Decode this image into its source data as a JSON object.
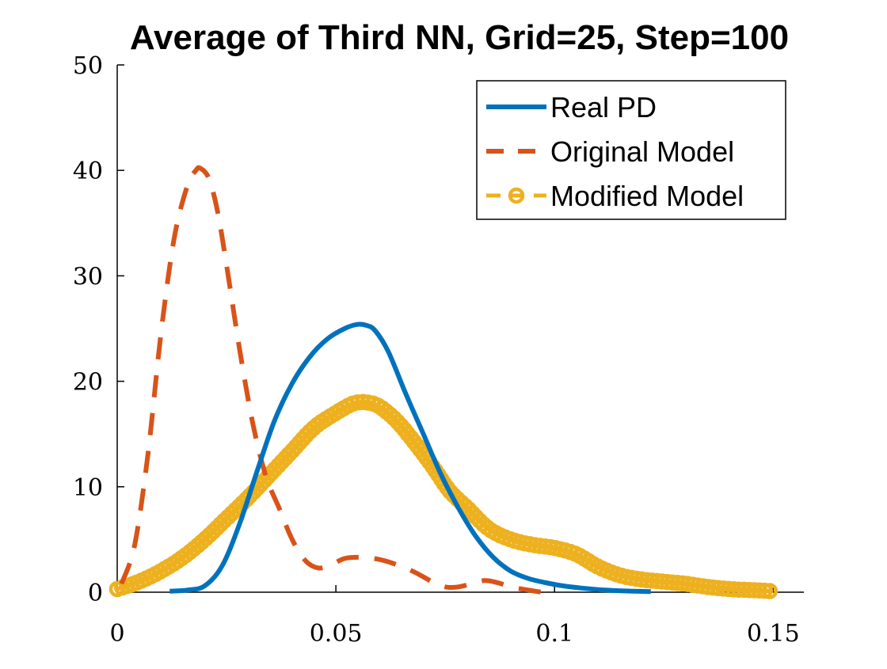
{
  "chart_data": {
    "type": "line",
    "title": "Average of Third NN, Grid=25, Step=100",
    "xlabel": "",
    "ylabel": "",
    "xlim": [
      0,
      0.157
    ],
    "ylim": [
      0,
      50
    ],
    "xticks": [
      0,
      0.05,
      0.1,
      0.15
    ],
    "xtick_labels": [
      "0",
      "0.05",
      "0.1",
      "0.15"
    ],
    "yticks": [
      0,
      10,
      20,
      30,
      40,
      50
    ],
    "ytick_labels": [
      "0",
      "10",
      "20",
      "30",
      "40",
      "50"
    ],
    "grid": false,
    "legend_position": "top-right",
    "series": [
      {
        "name": "Real PD",
        "color": "#0072BD",
        "style": "solid",
        "x": [
          0.012,
          0.016,
          0.02,
          0.024,
          0.028,
          0.032,
          0.036,
          0.04,
          0.044,
          0.048,
          0.052,
          0.055,
          0.057,
          0.059,
          0.062,
          0.066,
          0.07,
          0.074,
          0.078,
          0.082,
          0.086,
          0.09,
          0.094,
          0.098,
          0.102,
          0.106,
          0.11,
          0.114,
          0.118,
          0.122
        ],
        "y": [
          0.1,
          0.2,
          0.6,
          2.5,
          6.5,
          11.5,
          16.3,
          19.8,
          22.3,
          24.0,
          25.0,
          25.4,
          25.3,
          24.8,
          22.8,
          18.8,
          15.0,
          11.2,
          8.0,
          5.3,
          3.3,
          2.0,
          1.3,
          0.9,
          0.6,
          0.4,
          0.25,
          0.15,
          0.1,
          0.05
        ]
      },
      {
        "name": "Original Model",
        "color": "#D95319",
        "style": "dashed",
        "x": [
          0.001,
          0.004,
          0.007,
          0.01,
          0.013,
          0.016,
          0.018,
          0.019,
          0.021,
          0.023,
          0.025,
          0.028,
          0.031,
          0.034,
          0.037,
          0.04,
          0.043,
          0.046,
          0.049,
          0.052,
          0.056,
          0.06,
          0.064,
          0.068,
          0.072,
          0.075,
          0.078,
          0.081,
          0.084,
          0.087,
          0.09,
          0.094,
          0.097
        ],
        "y": [
          0.8,
          4.5,
          13.0,
          24.5,
          33.5,
          38.5,
          40.0,
          40.2,
          39.2,
          36.0,
          31.0,
          23.0,
          16.0,
          11.0,
          8.0,
          5.0,
          3.0,
          2.3,
          2.6,
          3.2,
          3.3,
          3.1,
          2.6,
          1.9,
          1.0,
          0.5,
          0.5,
          0.8,
          1.1,
          0.9,
          0.5,
          0.2,
          0.0
        ]
      },
      {
        "name": "Modified Model",
        "color": "#EDB120",
        "style": "dashed-circle",
        "x": [
          0.0,
          0.005,
          0.01,
          0.015,
          0.02,
          0.025,
          0.03,
          0.035,
          0.04,
          0.045,
          0.05,
          0.054,
          0.057,
          0.06,
          0.064,
          0.068,
          0.072,
          0.076,
          0.08,
          0.085,
          0.09,
          0.095,
          0.1,
          0.105,
          0.11,
          0.115,
          0.12,
          0.125,
          0.13,
          0.135,
          0.14,
          0.145,
          0.15
        ],
        "y": [
          0.3,
          1.0,
          2.0,
          3.3,
          5.0,
          7.0,
          9.0,
          11.2,
          13.4,
          15.6,
          17.0,
          17.9,
          18.0,
          17.6,
          16.2,
          14.2,
          12.0,
          9.6,
          8.0,
          6.0,
          5.0,
          4.5,
          4.2,
          3.6,
          2.4,
          1.6,
          1.2,
          1.0,
          0.8,
          0.5,
          0.3,
          0.2,
          0.1
        ]
      }
    ]
  }
}
